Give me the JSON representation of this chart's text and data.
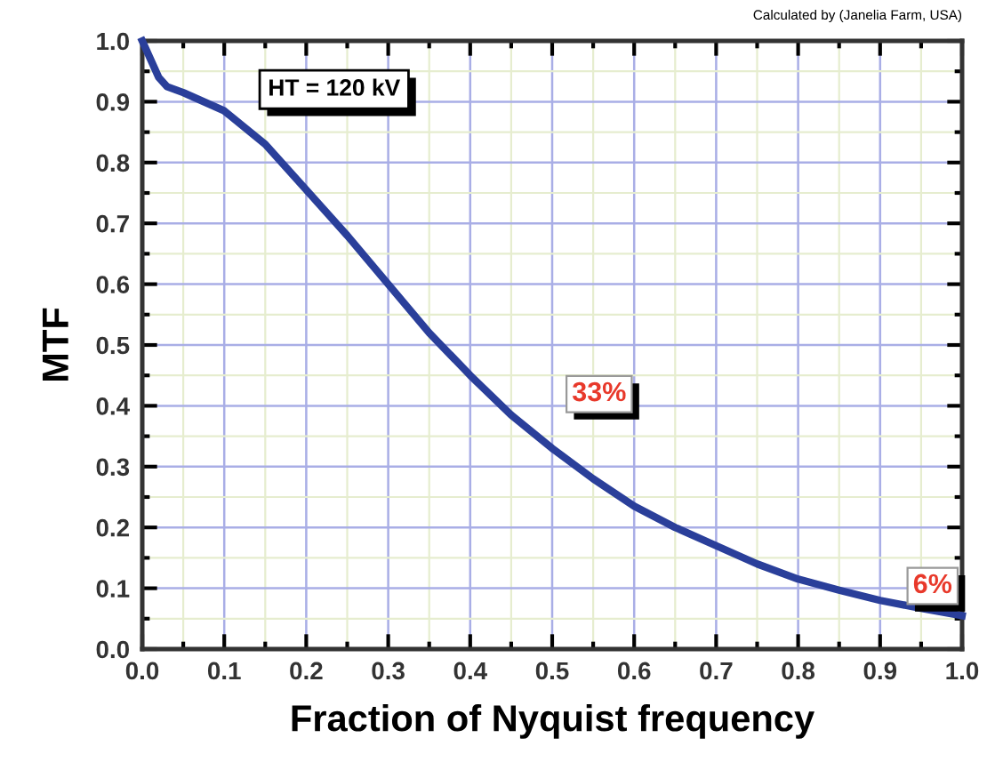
{
  "chart_data": {
    "type": "line",
    "xlabel": "Fraction of Nyquist frequency",
    "ylabel": "MTF",
    "x": [
      0,
      0.01,
      0.02,
      0.03,
      0.05,
      0.1,
      0.15,
      0.2,
      0.25,
      0.3,
      0.35,
      0.4,
      0.45,
      0.5,
      0.55,
      0.6,
      0.65,
      0.7,
      0.75,
      0.8,
      0.85,
      0.9,
      0.95,
      1.0
    ],
    "series": [
      {
        "color": "#2a3f9a",
        "values": [
          1.0,
          0.97,
          0.94,
          0.925,
          0.915,
          0.885,
          0.83,
          0.755,
          0.68,
          0.6,
          0.52,
          0.45,
          0.385,
          0.33,
          0.28,
          0.235,
          0.2,
          0.17,
          0.14,
          0.115,
          0.097,
          0.08,
          0.067,
          0.055
        ]
      }
    ],
    "xlim": [
      0,
      1.0
    ],
    "ylim": [
      0,
      1.0
    ],
    "xticks": [
      {
        "value": 0,
        "label": "0.0"
      },
      0.1,
      0.2,
      0.3,
      0.4,
      0.5,
      0.6,
      0.7,
      0.8,
      0.9,
      {
        "value": 1,
        "label": "1.0"
      }
    ],
    "yticks": [
      {
        "value": 0,
        "label": "0.0"
      },
      0.1,
      0.2,
      0.3,
      0.4,
      0.5,
      0.6,
      0.7,
      0.8,
      0.9,
      {
        "value": 1,
        "label": "1.0"
      }
    ],
    "grid": true,
    "marker": "none",
    "line_style": "solid",
    "annotations": [
      "HT = 120 kV",
      {
        "text": "33%",
        "x": 0.5,
        "y": 0.33
      },
      {
        "text": "6%",
        "x": 1.0,
        "y": 0.055
      },
      "Calculated by (Janelia Farm, USA)"
    ]
  }
}
